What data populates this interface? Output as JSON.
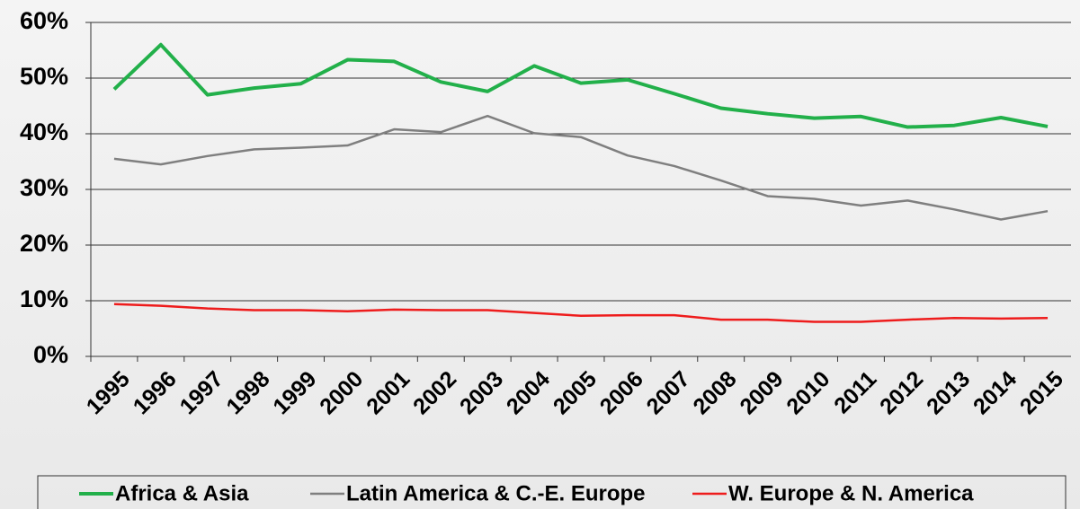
{
  "chart_data": {
    "type": "line",
    "categories": [
      "1995",
      "1996",
      "1997",
      "1998",
      "1999",
      "2000",
      "2001",
      "2002",
      "2003",
      "2004",
      "2005",
      "2006",
      "2007",
      "2008",
      "2009",
      "2010",
      "2011",
      "2012",
      "2013",
      "2014",
      "2015"
    ],
    "series": [
      {
        "name": "Africa & Asia",
        "color": "#22b04a",
        "values": [
          48,
          56,
          47,
          48.2,
          49,
          53.3,
          53,
          49.3,
          47.6,
          52.2,
          49.1,
          49.7,
          47.2,
          44.6,
          43.6,
          42.8,
          43.1,
          41.2,
          41.5,
          42.9,
          41.3
        ]
      },
      {
        "name": "Latin America & C.-E. Europe",
        "color": "#7f7f7f",
        "values": [
          35.5,
          34.5,
          36,
          37.2,
          37.5,
          37.9,
          40.8,
          40.3,
          43.2,
          40.1,
          39.4,
          36.1,
          34.2,
          31.6,
          28.8,
          28.3,
          27.1,
          28,
          26.4,
          24.6,
          26.1
        ]
      },
      {
        "name": "W. Europe & N. America",
        "color": "#ee1c1c",
        "values": [
          9.4,
          9.1,
          8.6,
          8.3,
          8.3,
          8.1,
          8.4,
          8.3,
          8.3,
          7.8,
          7.3,
          7.4,
          7.4,
          6.6,
          6.6,
          6.2,
          6.2,
          6.6,
          6.9,
          6.8,
          6.9
        ]
      }
    ],
    "ylim": [
      0,
      60
    ],
    "yticks": [
      {
        "value": 0,
        "label": "0%"
      },
      {
        "value": 10,
        "label": "10%"
      },
      {
        "value": 20,
        "label": "20%"
      },
      {
        "value": 30,
        "label": "30%"
      },
      {
        "value": 40,
        "label": "40%"
      },
      {
        "value": 50,
        "label": "50%"
      },
      {
        "value": 60,
        "label": "60%"
      }
    ],
    "grid": true,
    "legend": "bottom"
  }
}
